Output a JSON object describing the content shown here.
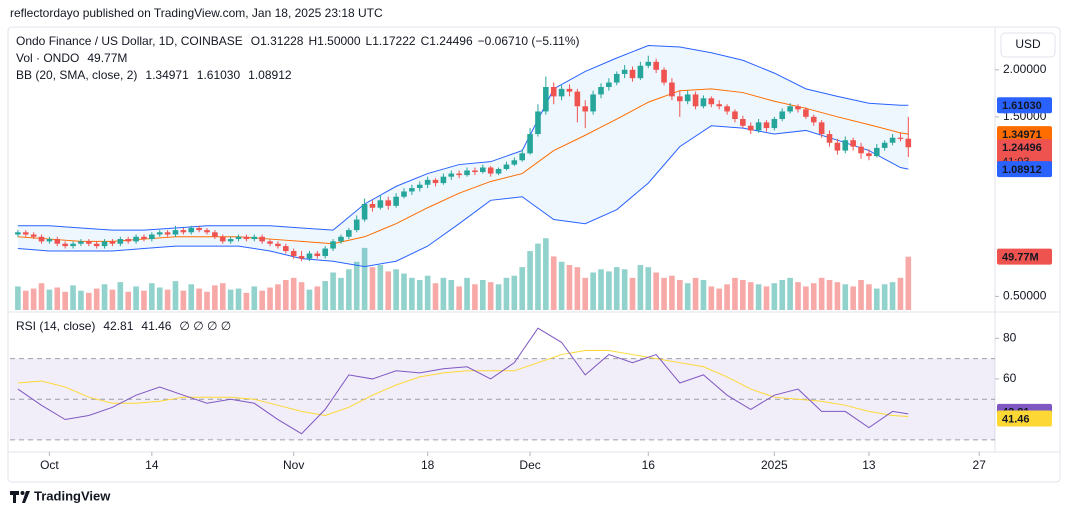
{
  "header": {
    "text": "reflectordayo published on TradingView.com, Jan 18, 2025 23:18 UTC"
  },
  "chart_data": {
    "type": "candlestick",
    "legend": {
      "symbol": "Ondo Finance / US Dollar, 1D, COINBASE",
      "open": "O1.31228",
      "high": "H1.50000",
      "low": "L1.17222",
      "close": "C1.24496",
      "change": "−0.06710 (−5.11%)",
      "volume_name": "Vol · ONDO",
      "volume_value": "49.77M",
      "bb_name": "BB (20, SMA, close, 2)",
      "bb_values": [
        "1.34971",
        "1.61030",
        "1.08912"
      ],
      "rsi_name": "RSI (14, close)",
      "rsi_values": [
        "42.81",
        "41.46"
      ],
      "rsi_extras": "∅ ∅ ∅ ∅"
    },
    "currency": "USD",
    "xlim": [
      -1,
      124
    ],
    "xticks": [
      {
        "value": 4,
        "label": "Oct"
      },
      {
        "value": 17,
        "label": "14"
      },
      {
        "value": 35,
        "label": "Nov"
      },
      {
        "value": 52,
        "label": "18"
      },
      {
        "value": 65,
        "label": "Dec"
      },
      {
        "value": 80,
        "label": "16"
      },
      {
        "value": 96,
        "label": "2025"
      },
      {
        "value": 108,
        "label": "13"
      },
      {
        "value": 122,
        "label": "27"
      }
    ],
    "ylim": [
      0.46,
      2.4
    ],
    "log_scale": true,
    "yticks": [
      {
        "value": 2,
        "label": "2.00000"
      },
      {
        "value": 1.5,
        "label": "1.50000"
      },
      {
        "value": 0.5,
        "label": "0.50000"
      }
    ],
    "up_color": "#26a69a",
    "down_color": "#ef5350",
    "candles": [
      [
        0.73,
        0.75,
        0.72,
        0.74
      ],
      [
        0.74,
        0.75,
        0.72,
        0.73
      ],
      [
        0.73,
        0.74,
        0.71,
        0.72
      ],
      [
        0.72,
        0.73,
        0.69,
        0.7
      ],
      [
        0.7,
        0.72,
        0.69,
        0.71
      ],
      [
        0.71,
        0.72,
        0.68,
        0.69
      ],
      [
        0.69,
        0.7,
        0.67,
        0.68
      ],
      [
        0.68,
        0.7,
        0.67,
        0.69
      ],
      [
        0.69,
        0.71,
        0.68,
        0.7
      ],
      [
        0.7,
        0.71,
        0.68,
        0.69
      ],
      [
        0.69,
        0.7,
        0.67,
        0.68
      ],
      [
        0.68,
        0.71,
        0.67,
        0.7
      ],
      [
        0.7,
        0.71,
        0.68,
        0.69
      ],
      [
        0.69,
        0.72,
        0.68,
        0.71
      ],
      [
        0.71,
        0.72,
        0.69,
        0.7
      ],
      [
        0.7,
        0.73,
        0.69,
        0.72
      ],
      [
        0.72,
        0.73,
        0.7,
        0.71
      ],
      [
        0.71,
        0.74,
        0.7,
        0.73
      ],
      [
        0.73,
        0.75,
        0.72,
        0.74
      ],
      [
        0.74,
        0.75,
        0.72,
        0.73
      ],
      [
        0.73,
        0.77,
        0.72,
        0.75
      ],
      [
        0.75,
        0.76,
        0.73,
        0.74
      ],
      [
        0.74,
        0.77,
        0.73,
        0.76
      ],
      [
        0.76,
        0.77,
        0.74,
        0.75
      ],
      [
        0.75,
        0.76,
        0.73,
        0.74
      ],
      [
        0.74,
        0.75,
        0.71,
        0.72
      ],
      [
        0.72,
        0.73,
        0.69,
        0.7
      ],
      [
        0.7,
        0.72,
        0.69,
        0.71
      ],
      [
        0.71,
        0.73,
        0.7,
        0.72
      ],
      [
        0.72,
        0.73,
        0.7,
        0.71
      ],
      [
        0.71,
        0.73,
        0.7,
        0.72
      ],
      [
        0.72,
        0.73,
        0.69,
        0.7
      ],
      [
        0.7,
        0.71,
        0.68,
        0.69
      ],
      [
        0.69,
        0.7,
        0.67,
        0.68
      ],
      [
        0.68,
        0.69,
        0.65,
        0.66
      ],
      [
        0.66,
        0.67,
        0.63,
        0.64
      ],
      [
        0.64,
        0.66,
        0.62,
        0.63
      ],
      [
        0.63,
        0.66,
        0.62,
        0.65
      ],
      [
        0.65,
        0.66,
        0.63,
        0.64
      ],
      [
        0.64,
        0.68,
        0.63,
        0.67
      ],
      [
        0.67,
        0.71,
        0.66,
        0.7
      ],
      [
        0.7,
        0.73,
        0.69,
        0.72
      ],
      [
        0.72,
        0.76,
        0.71,
        0.75
      ],
      [
        0.75,
        0.82,
        0.74,
        0.8
      ],
      [
        0.8,
        0.91,
        0.79,
        0.88
      ],
      [
        0.88,
        0.9,
        0.84,
        0.86
      ],
      [
        0.86,
        0.93,
        0.85,
        0.9
      ],
      [
        0.9,
        0.92,
        0.85,
        0.87
      ],
      [
        0.87,
        0.94,
        0.86,
        0.92
      ],
      [
        0.92,
        0.97,
        0.91,
        0.95
      ],
      [
        0.95,
        0.99,
        0.93,
        0.97
      ],
      [
        0.97,
        1.01,
        0.95,
        0.99
      ],
      [
        0.99,
        1.04,
        0.97,
        1.02
      ],
      [
        1.02,
        1.03,
        0.98,
        1.0
      ],
      [
        1.0,
        1.06,
        0.99,
        1.04
      ],
      [
        1.04,
        1.08,
        1.02,
        1.06
      ],
      [
        1.06,
        1.08,
        1.03,
        1.05
      ],
      [
        1.05,
        1.1,
        1.04,
        1.08
      ],
      [
        1.08,
        1.1,
        1.05,
        1.07
      ],
      [
        1.07,
        1.12,
        1.06,
        1.1
      ],
      [
        1.1,
        1.11,
        1.04,
        1.06
      ],
      [
        1.06,
        1.1,
        1.05,
        1.09
      ],
      [
        1.09,
        1.14,
        1.08,
        1.12
      ],
      [
        1.12,
        1.17,
        1.11,
        1.15
      ],
      [
        1.15,
        1.23,
        1.14,
        1.2
      ],
      [
        1.2,
        1.4,
        1.19,
        1.35
      ],
      [
        1.35,
        1.62,
        1.33,
        1.55
      ],
      [
        1.55,
        1.92,
        1.52,
        1.8
      ],
      [
        1.8,
        1.85,
        1.62,
        1.7
      ],
      [
        1.7,
        1.82,
        1.66,
        1.78
      ],
      [
        1.78,
        1.83,
        1.7,
        1.75
      ],
      [
        1.75,
        1.78,
        1.45,
        1.6
      ],
      [
        1.6,
        1.66,
        1.4,
        1.55
      ],
      [
        1.55,
        1.76,
        1.52,
        1.72
      ],
      [
        1.72,
        1.84,
        1.68,
        1.8
      ],
      [
        1.8,
        1.9,
        1.76,
        1.85
      ],
      [
        1.85,
        1.98,
        1.82,
        1.95
      ],
      [
        1.95,
        2.06,
        1.9,
        2.0
      ],
      [
        2.0,
        2.04,
        1.86,
        1.9
      ],
      [
        1.9,
        2.1,
        1.88,
        2.05
      ],
      [
        2.05,
        2.18,
        2.02,
        2.1
      ],
      [
        2.1,
        2.14,
        1.96,
        2.0
      ],
      [
        2.0,
        2.03,
        1.82,
        1.85
      ],
      [
        1.85,
        1.9,
        1.66,
        1.7
      ],
      [
        1.7,
        1.76,
        1.5,
        1.65
      ],
      [
        1.65,
        1.76,
        1.62,
        1.72
      ],
      [
        1.72,
        1.75,
        1.57,
        1.6
      ],
      [
        1.6,
        1.71,
        1.58,
        1.68
      ],
      [
        1.68,
        1.7,
        1.59,
        1.62
      ],
      [
        1.62,
        1.66,
        1.57,
        1.6
      ],
      [
        1.6,
        1.62,
        1.52,
        1.55
      ],
      [
        1.55,
        1.57,
        1.45,
        1.48
      ],
      [
        1.48,
        1.51,
        1.4,
        1.42
      ],
      [
        1.42,
        1.45,
        1.35,
        1.38
      ],
      [
        1.38,
        1.48,
        1.36,
        1.45
      ],
      [
        1.45,
        1.47,
        1.37,
        1.4
      ],
      [
        1.4,
        1.5,
        1.38,
        1.48
      ],
      [
        1.48,
        1.58,
        1.46,
        1.55
      ],
      [
        1.55,
        1.63,
        1.53,
        1.6
      ],
      [
        1.6,
        1.62,
        1.54,
        1.57
      ],
      [
        1.57,
        1.59,
        1.48,
        1.5
      ],
      [
        1.5,
        1.52,
        1.42,
        1.45
      ],
      [
        1.45,
        1.47,
        1.32,
        1.35
      ],
      [
        1.35,
        1.38,
        1.25,
        1.28
      ],
      [
        1.28,
        1.31,
        1.19,
        1.22
      ],
      [
        1.22,
        1.33,
        1.2,
        1.3
      ],
      [
        1.3,
        1.32,
        1.22,
        1.25
      ],
      [
        1.25,
        1.28,
        1.16,
        1.2
      ],
      [
        1.2,
        1.23,
        1.15,
        1.18
      ],
      [
        1.18,
        1.27,
        1.17,
        1.24
      ],
      [
        1.24,
        1.3,
        1.22,
        1.28
      ],
      [
        1.28,
        1.35,
        1.26,
        1.32
      ],
      [
        1.32,
        1.36,
        1.29,
        1.31
      ],
      [
        1.31228,
        1.5,
        1.17222,
        1.24496
      ]
    ],
    "volume": {
      "lim": [
        0,
        140
      ],
      "values": [
        22,
        18,
        20,
        25,
        19,
        21,
        17,
        23,
        18,
        16,
        20,
        24,
        19,
        26,
        17,
        22,
        18,
        25,
        21,
        19,
        27,
        18,
        24,
        20,
        17,
        23,
        25,
        19,
        20,
        16,
        22,
        18,
        21,
        24,
        28,
        30,
        26,
        19,
        22,
        27,
        35,
        30,
        38,
        45,
        58,
        40,
        42,
        36,
        38,
        34,
        30,
        28,
        32,
        25,
        30,
        28,
        22,
        30,
        24,
        28,
        26,
        24,
        30,
        32,
        40,
        55,
        62,
        67,
        50,
        45,
        42,
        40,
        30,
        35,
        38,
        36,
        40,
        38,
        30,
        42,
        40,
        35,
        30,
        32,
        28,
        25,
        30,
        28,
        22,
        20,
        24,
        30,
        28,
        26,
        24,
        22,
        25,
        28,
        30,
        26,
        22,
        25,
        30,
        28,
        26,
        24,
        22,
        28,
        24,
        20,
        24,
        26,
        30,
        49.77
      ]
    },
    "bb": {
      "upper_color": "#2962ff",
      "middle_color": "#ff6d00",
      "lower_color": "#2962ff",
      "x": [
        0,
        4,
        8,
        12,
        16,
        20,
        24,
        28,
        32,
        36,
        40,
        44,
        48,
        52,
        56,
        60,
        64,
        68,
        72,
        76,
        80,
        84,
        88,
        92,
        96,
        100,
        104,
        108,
        112,
        113
      ],
      "upper": [
        0.77,
        0.77,
        0.76,
        0.75,
        0.75,
        0.76,
        0.77,
        0.77,
        0.77,
        0.76,
        0.75,
        0.88,
        0.98,
        1.06,
        1.12,
        1.14,
        1.22,
        1.78,
        1.98,
        2.15,
        2.32,
        2.3,
        2.22,
        2.12,
        1.96,
        1.78,
        1.7,
        1.63,
        1.61,
        1.6103
      ],
      "middle": [
        0.72,
        0.71,
        0.7,
        0.7,
        0.71,
        0.72,
        0.72,
        0.72,
        0.71,
        0.7,
        0.69,
        0.72,
        0.78,
        0.86,
        0.94,
        1.01,
        1.06,
        1.22,
        1.34,
        1.48,
        1.64,
        1.76,
        1.78,
        1.74,
        1.65,
        1.58,
        1.5,
        1.43,
        1.36,
        1.34971
      ],
      "lower": [
        0.67,
        0.66,
        0.66,
        0.66,
        0.67,
        0.68,
        0.68,
        0.68,
        0.66,
        0.63,
        0.62,
        0.6,
        0.62,
        0.68,
        0.78,
        0.9,
        0.92,
        0.8,
        0.78,
        0.85,
        1.0,
        1.25,
        1.42,
        1.4,
        1.35,
        1.38,
        1.3,
        1.22,
        1.1,
        1.08912
      ]
    },
    "rsi": {
      "color": "#7e57c2",
      "ma_color": "#fdd835",
      "ylim": [
        24,
        91
      ],
      "yticks": [
        80,
        60
      ],
      "levels": [
        70,
        50,
        30
      ],
      "x": [
        0,
        3,
        6,
        9,
        12,
        15,
        18,
        21,
        24,
        27,
        30,
        33,
        36,
        39,
        42,
        45,
        48,
        51,
        54,
        57,
        60,
        63,
        66,
        69,
        72,
        75,
        78,
        81,
        84,
        87,
        90,
        93,
        96,
        99,
        102,
        105,
        108,
        111,
        113
      ],
      "values": [
        55,
        47,
        40,
        42,
        46,
        52,
        56,
        52,
        48,
        50,
        48,
        40,
        33,
        45,
        62,
        60,
        64,
        63,
        65,
        66,
        60,
        68,
        85,
        78,
        62,
        72,
        68,
        72,
        58,
        62,
        52,
        45,
        52,
        55,
        44,
        44,
        36,
        44,
        42.81
      ],
      "ma": [
        58,
        59,
        56,
        51,
        48,
        48,
        49,
        51,
        51,
        51,
        50,
        47,
        44,
        42,
        46,
        52,
        57,
        61,
        63,
        64,
        64,
        64,
        68,
        72,
        74,
        74,
        72,
        70,
        68,
        66,
        61,
        55,
        51,
        50,
        49,
        47,
        44,
        42,
        41.46
      ]
    },
    "price_tags": [
      {
        "value": 1.6103,
        "label": "1.61030",
        "color": "#2962ff"
      },
      {
        "value": 1.34971,
        "label": "1.34971",
        "color": "#ff6d00"
      },
      {
        "value": 1.24496,
        "label": "1.24496",
        "countdown": "41:03",
        "color": "#ef5350"
      },
      {
        "value": 1.08912,
        "label": "1.08912",
        "color": "#2962ff"
      }
    ],
    "volume_tag": {
      "value": 49.77,
      "label": "49.77M",
      "color": "#ef5350"
    },
    "rsi_tags": [
      {
        "value": 42.81,
        "label": "42.81",
        "color": "#7e57c2"
      },
      {
        "value": 41.46,
        "label": "41.46",
        "color": "#fdd835"
      }
    ]
  },
  "footer": {
    "brand": "TradingView"
  }
}
